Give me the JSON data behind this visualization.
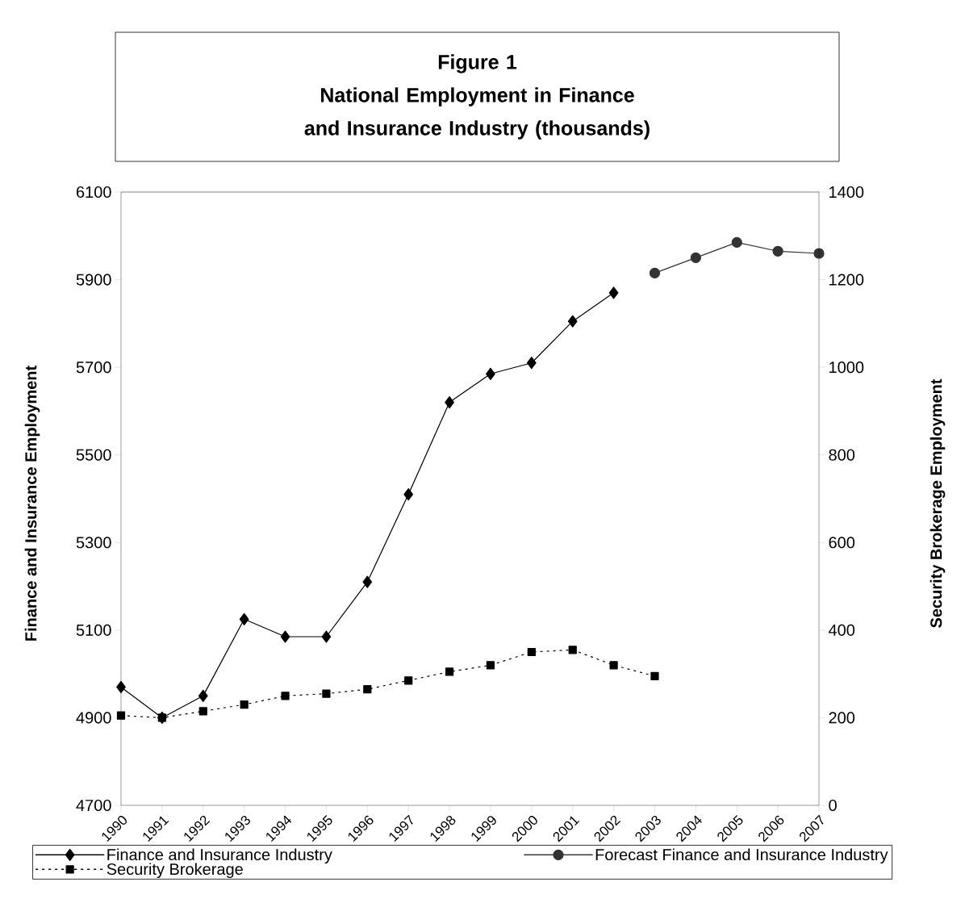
{
  "chart_data": {
    "type": "line",
    "title": "Figure 1",
    "subtitle": "National Employment in Finance and Insurance Industry (thousands)",
    "ylabel": "Finance and Insurance Employment",
    "y2label": "Security Brokerage Employment",
    "categories": [
      "1990",
      "1991",
      "1992",
      "1993",
      "1994",
      "1995",
      "1996",
      "1997",
      "1998",
      "1999",
      "2000",
      "2001",
      "2002",
      "2003",
      "2004",
      "2005",
      "2006",
      "2007"
    ],
    "ylim": [
      4700,
      6100
    ],
    "yticks": [
      4700,
      4900,
      5100,
      5300,
      5500,
      5700,
      5900,
      6100
    ],
    "y2lim": [
      0,
      1400
    ],
    "y2ticks": [
      0,
      200,
      400,
      600,
      800,
      1000,
      1200,
      1400
    ],
    "series": [
      {
        "name": "Finance and Insurance Industry",
        "color": "#000000",
        "marker": "diamond",
        "line_style": "solid",
        "values": [
          4970,
          4900,
          4950,
          5125,
          5085,
          5085,
          5210,
          5410,
          5620,
          5685,
          5710,
          5805,
          5870,
          null,
          null,
          null,
          null,
          null
        ]
      },
      {
        "name": "Forecast Finance and Insurance Industry",
        "color": "#333333",
        "marker": "circle",
        "line_style": "solid",
        "values": [
          null,
          null,
          null,
          null,
          null,
          null,
          null,
          null,
          null,
          null,
          null,
          null,
          null,
          5915,
          5950,
          5985,
          5965,
          5960
        ]
      },
      {
        "name": "Security Brokerage",
        "color": "#000000",
        "marker": "square",
        "line_style": "dotted",
        "axis": "y2",
        "values": [
          205,
          200,
          215,
          230,
          250,
          255,
          265,
          285,
          305,
          320,
          350,
          355,
          320,
          295,
          null,
          null,
          null,
          null
        ]
      }
    ],
    "legend": "bottom",
    "grid": false
  }
}
